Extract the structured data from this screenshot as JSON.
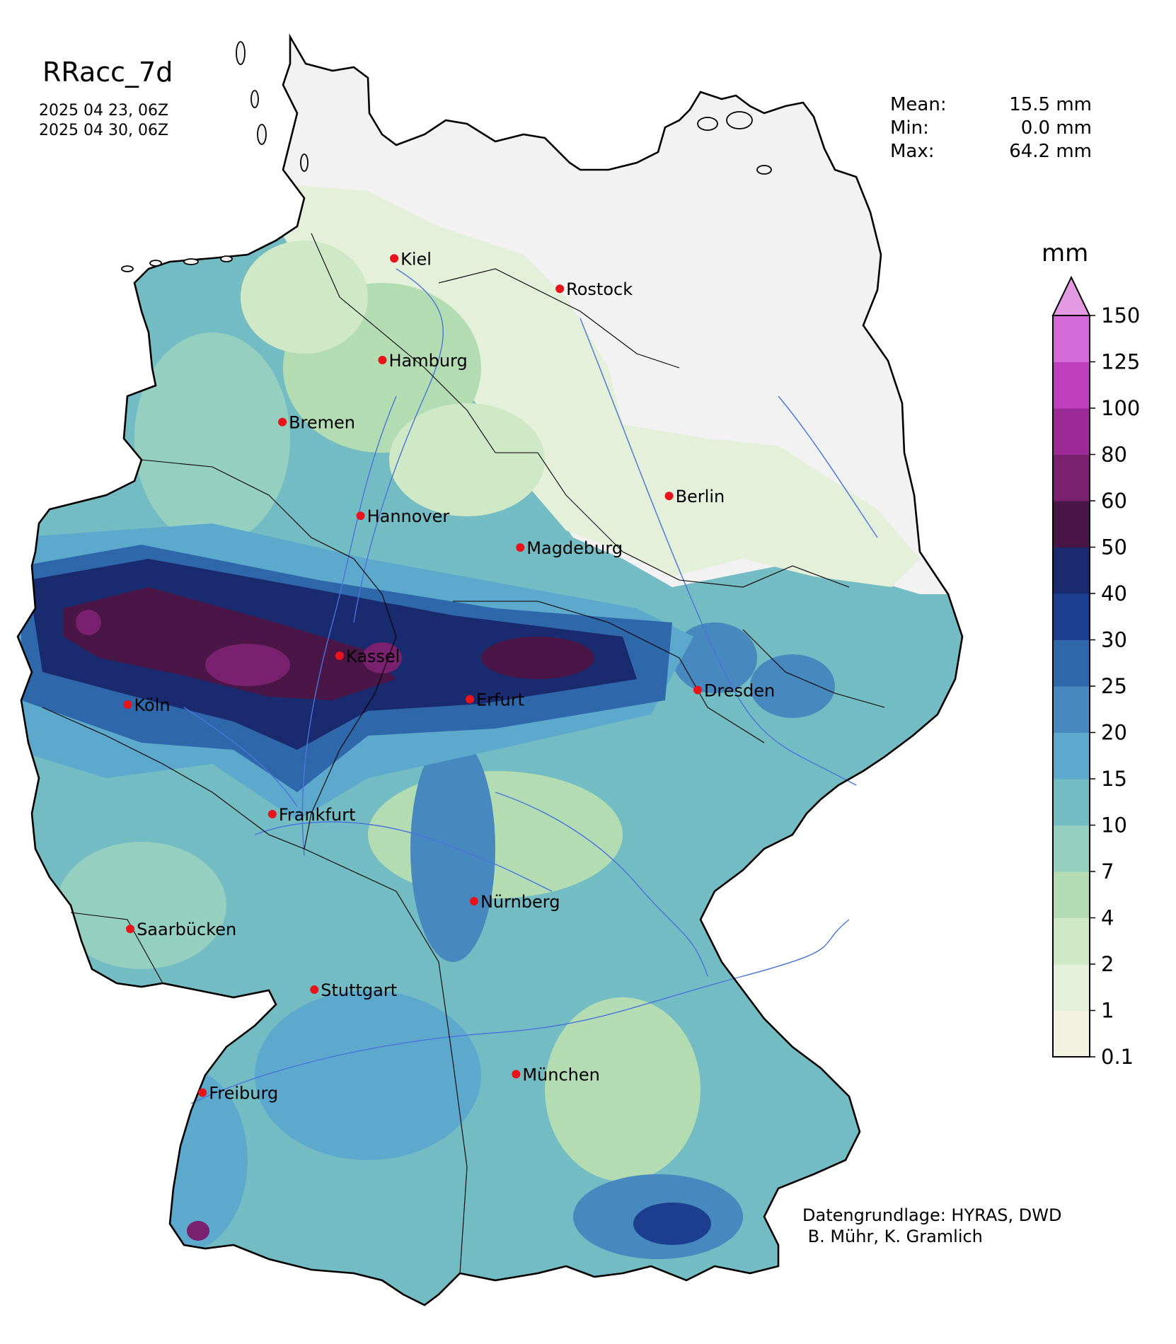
{
  "title": "RRacc_7d",
  "dates": [
    "2025 04 23, 06Z",
    "2025 04 30, 06Z"
  ],
  "stats": [
    {
      "label": "Mean:",
      "value": "15.5 mm"
    },
    {
      "label": "Min:",
      "value": "0.0 mm"
    },
    {
      "label": "Max:",
      "value": "64.2 mm"
    }
  ],
  "credit": {
    "line1": "Datengrundlage: HYRAS, DWD",
    "line2": " B. Mühr, K. Gramlich"
  },
  "colorbar": {
    "unit": "mm",
    "levels": [
      "0.1",
      "1",
      "2",
      "4",
      "7",
      "10",
      "15",
      "20",
      "25",
      "30",
      "40",
      "50",
      "60",
      "80",
      "100",
      "125",
      "150"
    ],
    "colors": [
      "#f3f1df",
      "#e4f0da",
      "#cfe8c6",
      "#b3dcb3",
      "#94cfbf",
      "#74bcc3",
      "#5da9ce",
      "#4789be",
      "#2f68aa",
      "#1b3f8e",
      "#1a2a6e",
      "#4a1648",
      "#79206e",
      "#9b2a96",
      "#be3ebd",
      "#d46ad8"
    ],
    "extend_color": "#e39ae3"
  },
  "cities": [
    {
      "name": "Kiel",
      "lon": 10.13,
      "lat": 54.32
    },
    {
      "name": "Rostock",
      "lon": 12.1,
      "lat": 54.09
    },
    {
      "name": "Hamburg",
      "lon": 9.99,
      "lat": 53.55
    },
    {
      "name": "Bremen",
      "lon": 8.8,
      "lat": 53.08
    },
    {
      "name": "Berlin",
      "lon": 13.4,
      "lat": 52.52
    },
    {
      "name": "Hannover",
      "lon": 9.73,
      "lat": 52.37
    },
    {
      "name": "Magdeburg",
      "lon": 11.63,
      "lat": 52.13
    },
    {
      "name": "Kassel",
      "lon": 9.48,
      "lat": 51.31
    },
    {
      "name": "Dresden",
      "lon": 13.74,
      "lat": 51.05
    },
    {
      "name": "Köln",
      "lon": 6.96,
      "lat": 50.94
    },
    {
      "name": "Erfurt",
      "lon": 11.03,
      "lat": 50.98
    },
    {
      "name": "Frankfurt",
      "lon": 8.68,
      "lat": 50.11
    },
    {
      "name": "Nürnberg",
      "lon": 11.08,
      "lat": 49.45
    },
    {
      "name": "Saarbücken",
      "lon": 6.99,
      "lat": 49.24
    },
    {
      "name": "Stuttgart",
      "lon": 9.18,
      "lat": 48.78
    },
    {
      "name": "München",
      "lon": 11.58,
      "lat": 48.14
    },
    {
      "name": "Freiburg",
      "lon": 7.85,
      "lat": 48.0
    }
  ],
  "colors": {
    "city_marker": "#e8141c",
    "border": "#000000",
    "river": "#4a74d9"
  }
}
